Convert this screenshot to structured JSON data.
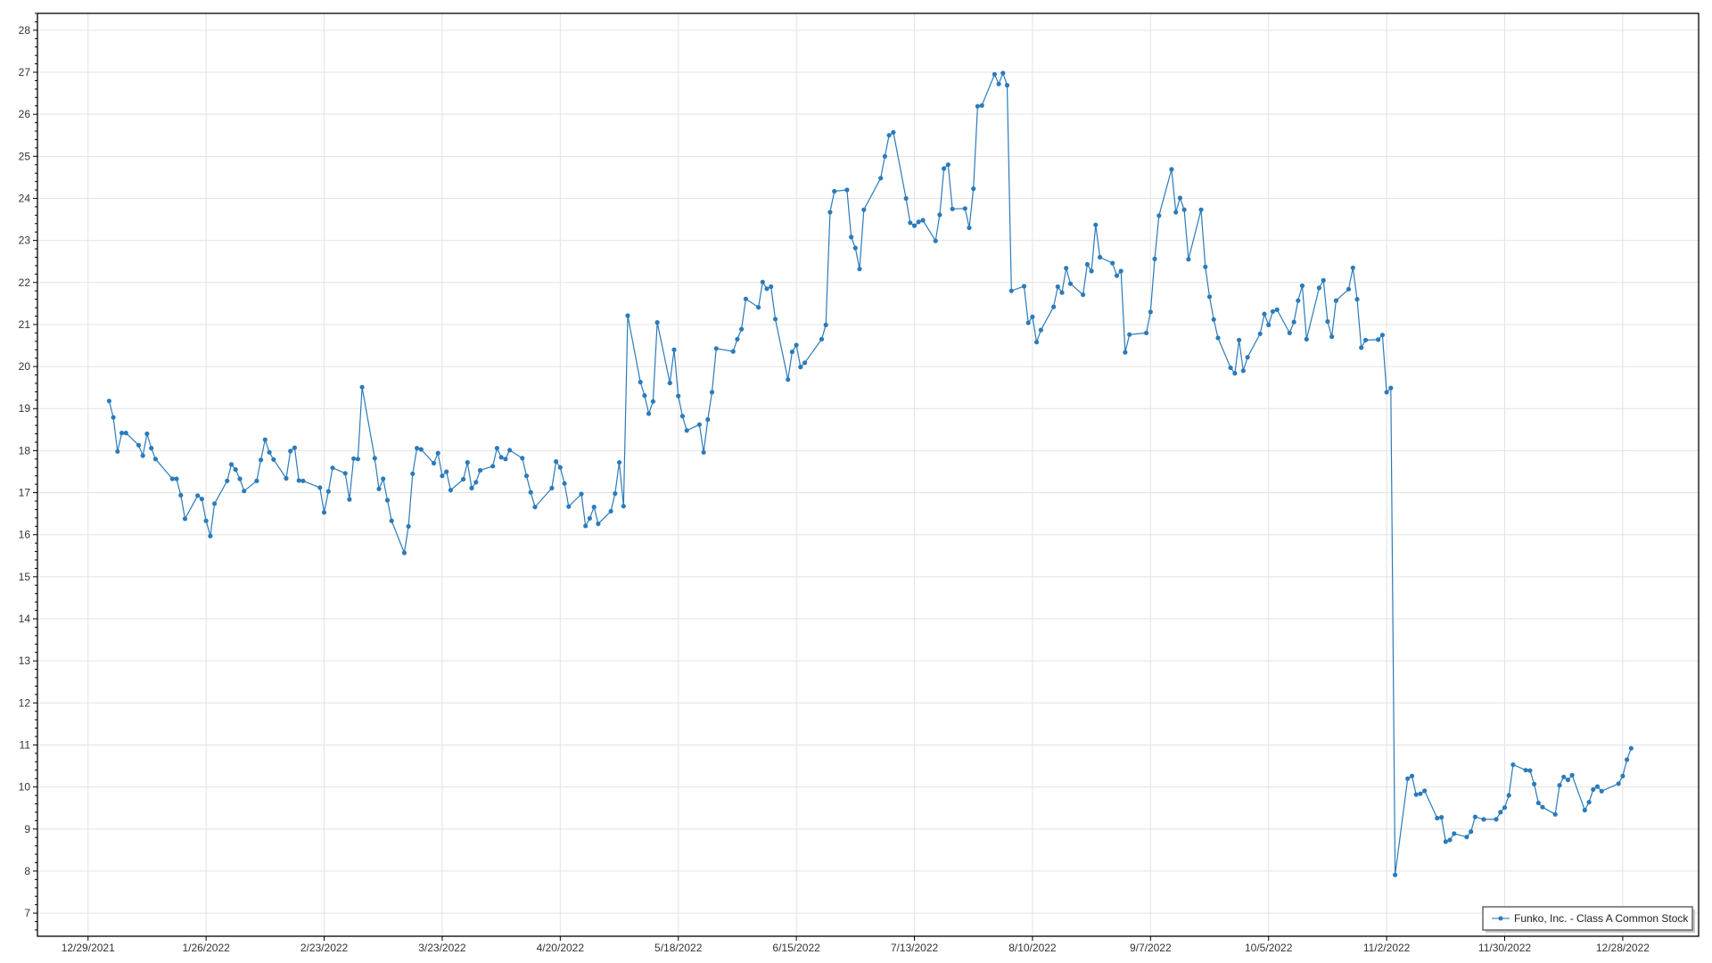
{
  "chart_data": {
    "type": "line",
    "title": "",
    "xlabel": "",
    "ylabel": "",
    "xlim": [
      "2021-12-17",
      "2023-01-15"
    ],
    "ylim": [
      6.45,
      28.4
    ],
    "grid": true,
    "legend_position": "bottom-right",
    "x_ticks": [
      "12/29/2021",
      "1/26/2022",
      "2/23/2022",
      "3/23/2022",
      "4/20/2022",
      "5/18/2022",
      "6/15/2022",
      "7/13/2022",
      "8/10/2022",
      "9/7/2022",
      "10/5/2022",
      "11/2/2022",
      "11/30/2022",
      "12/28/2022"
    ],
    "y_ticks": [
      7,
      8,
      9,
      10,
      11,
      12,
      13,
      14,
      15,
      16,
      17,
      18,
      19,
      20,
      21,
      22,
      23,
      24,
      25,
      26,
      27,
      28
    ],
    "colors": {
      "series": "#2b7bba",
      "grid": "#e3e3e3",
      "axis": "#000000",
      "legend_border": "#666666"
    },
    "series": [
      {
        "name": "Funko, Inc. - Class A Common Stock",
        "marker": "circle",
        "points": [
          [
            "2022-01-03",
            19.18
          ],
          [
            "2022-01-04",
            18.79
          ],
          [
            "2022-01-05",
            17.98
          ],
          [
            "2022-01-06",
            18.42
          ],
          [
            "2022-01-07",
            18.42
          ],
          [
            "2022-01-10",
            18.13
          ],
          [
            "2022-01-11",
            17.88
          ],
          [
            "2022-01-12",
            18.4
          ],
          [
            "2022-01-13",
            18.06
          ],
          [
            "2022-01-14",
            17.8
          ],
          [
            "2022-01-18",
            17.33
          ],
          [
            "2022-01-19",
            17.33
          ],
          [
            "2022-01-20",
            16.94
          ],
          [
            "2022-01-21",
            16.38
          ],
          [
            "2022-01-24",
            16.93
          ],
          [
            "2022-01-25",
            16.85
          ],
          [
            "2022-01-26",
            16.33
          ],
          [
            "2022-01-27",
            15.97
          ],
          [
            "2022-01-28",
            16.74
          ],
          [
            "2022-01-31",
            17.28
          ],
          [
            "2022-02-01",
            17.67
          ],
          [
            "2022-02-02",
            17.55
          ],
          [
            "2022-02-03",
            17.33
          ],
          [
            "2022-02-04",
            17.04
          ],
          [
            "2022-02-07",
            17.28
          ],
          [
            "2022-02-08",
            17.78
          ],
          [
            "2022-02-09",
            18.26
          ],
          [
            "2022-02-10",
            17.96
          ],
          [
            "2022-02-11",
            17.79
          ],
          [
            "2022-02-14",
            17.34
          ],
          [
            "2022-02-15",
            17.99
          ],
          [
            "2022-02-16",
            18.07
          ],
          [
            "2022-02-17",
            17.29
          ],
          [
            "2022-02-18",
            17.28
          ],
          [
            "2022-02-22",
            17.12
          ],
          [
            "2022-02-23",
            16.53
          ],
          [
            "2022-02-24",
            17.03
          ],
          [
            "2022-02-25",
            17.59
          ],
          [
            "2022-02-28",
            17.46
          ],
          [
            "2022-03-01",
            16.84
          ],
          [
            "2022-03-02",
            17.81
          ],
          [
            "2022-03-03",
            17.8
          ],
          [
            "2022-03-04",
            19.51
          ],
          [
            "2022-03-07",
            17.82
          ],
          [
            "2022-03-08",
            17.09
          ],
          [
            "2022-03-09",
            17.33
          ],
          [
            "2022-03-10",
            16.82
          ],
          [
            "2022-03-11",
            16.33
          ],
          [
            "2022-03-14",
            15.57
          ],
          [
            "2022-03-15",
            16.2
          ],
          [
            "2022-03-16",
            17.45
          ],
          [
            "2022-03-17",
            18.06
          ],
          [
            "2022-03-18",
            18.03
          ],
          [
            "2022-03-21",
            17.7
          ],
          [
            "2022-03-22",
            17.94
          ],
          [
            "2022-03-23",
            17.4
          ],
          [
            "2022-03-24",
            17.5
          ],
          [
            "2022-03-25",
            17.06
          ],
          [
            "2022-03-28",
            17.32
          ],
          [
            "2022-03-29",
            17.72
          ],
          [
            "2022-03-30",
            17.11
          ],
          [
            "2022-03-31",
            17.25
          ],
          [
            "2022-04-01",
            17.53
          ],
          [
            "2022-04-04",
            17.63
          ],
          [
            "2022-04-05",
            18.06
          ],
          [
            "2022-04-06",
            17.84
          ],
          [
            "2022-04-07",
            17.8
          ],
          [
            "2022-04-08",
            18.01
          ],
          [
            "2022-04-11",
            17.82
          ],
          [
            "2022-04-12",
            17.4
          ],
          [
            "2022-04-13",
            17.01
          ],
          [
            "2022-04-14",
            16.66
          ],
          [
            "2022-04-18",
            17.11
          ],
          [
            "2022-04-19",
            17.74
          ],
          [
            "2022-04-20",
            17.6
          ],
          [
            "2022-04-21",
            17.22
          ],
          [
            "2022-04-22",
            16.67
          ],
          [
            "2022-04-25",
            16.97
          ],
          [
            "2022-04-26",
            16.21
          ],
          [
            "2022-04-27",
            16.39
          ],
          [
            "2022-04-28",
            16.66
          ],
          [
            "2022-04-29",
            16.26
          ],
          [
            "2022-05-02",
            16.56
          ],
          [
            "2022-05-03",
            16.98
          ],
          [
            "2022-05-04",
            17.72
          ],
          [
            "2022-05-05",
            16.68
          ],
          [
            "2022-05-06",
            21.21
          ],
          [
            "2022-05-09",
            19.63
          ],
          [
            "2022-05-10",
            19.31
          ],
          [
            "2022-05-11",
            18.88
          ],
          [
            "2022-05-12",
            19.17
          ],
          [
            "2022-05-13",
            21.05
          ],
          [
            "2022-05-16",
            19.61
          ],
          [
            "2022-05-17",
            20.4
          ],
          [
            "2022-05-18",
            19.3
          ],
          [
            "2022-05-19",
            18.82
          ],
          [
            "2022-05-20",
            18.48
          ],
          [
            "2022-05-23",
            18.62
          ],
          [
            "2022-05-24",
            17.96
          ],
          [
            "2022-05-25",
            18.74
          ],
          [
            "2022-05-26",
            19.39
          ],
          [
            "2022-05-27",
            20.43
          ],
          [
            "2022-05-31",
            20.36
          ],
          [
            "2022-06-01",
            20.65
          ],
          [
            "2022-06-02",
            20.89
          ],
          [
            "2022-06-03",
            21.61
          ],
          [
            "2022-06-06",
            21.41
          ],
          [
            "2022-06-07",
            22.01
          ],
          [
            "2022-06-08",
            21.85
          ],
          [
            "2022-06-09",
            21.9
          ],
          [
            "2022-06-10",
            21.13
          ],
          [
            "2022-06-13",
            19.69
          ],
          [
            "2022-06-14",
            20.35
          ],
          [
            "2022-06-15",
            20.51
          ],
          [
            "2022-06-16",
            19.99
          ],
          [
            "2022-06-17",
            20.09
          ],
          [
            "2022-06-21",
            20.65
          ],
          [
            "2022-06-22",
            20.99
          ],
          [
            "2022-06-23",
            23.67
          ],
          [
            "2022-06-24",
            24.17
          ],
          [
            "2022-06-27",
            24.2
          ],
          [
            "2022-06-28",
            23.08
          ],
          [
            "2022-06-29",
            22.82
          ],
          [
            "2022-06-30",
            22.32
          ],
          [
            "2022-07-01",
            23.73
          ],
          [
            "2022-07-05",
            24.48
          ],
          [
            "2022-07-06",
            25.0
          ],
          [
            "2022-07-07",
            25.5
          ],
          [
            "2022-07-08",
            25.57
          ],
          [
            "2022-07-11",
            24.0
          ],
          [
            "2022-07-12",
            23.42
          ],
          [
            "2022-07-13",
            23.35
          ],
          [
            "2022-07-14",
            23.44
          ],
          [
            "2022-07-15",
            23.48
          ],
          [
            "2022-07-18",
            22.99
          ],
          [
            "2022-07-19",
            23.61
          ],
          [
            "2022-07-20",
            24.71
          ],
          [
            "2022-07-21",
            24.8
          ],
          [
            "2022-07-22",
            23.75
          ],
          [
            "2022-07-25",
            23.76
          ],
          [
            "2022-07-26",
            23.3
          ],
          [
            "2022-07-27",
            24.23
          ],
          [
            "2022-07-28",
            26.19
          ],
          [
            "2022-07-29",
            26.21
          ],
          [
            "2022-08-01",
            26.95
          ],
          [
            "2022-08-02",
            26.72
          ],
          [
            "2022-08-03",
            26.98
          ],
          [
            "2022-08-04",
            26.69
          ],
          [
            "2022-08-05",
            21.8
          ],
          [
            "2022-08-08",
            21.91
          ],
          [
            "2022-08-09",
            21.04
          ],
          [
            "2022-08-10",
            21.18
          ],
          [
            "2022-08-11",
            20.58
          ],
          [
            "2022-08-12",
            20.87
          ],
          [
            "2022-08-15",
            21.42
          ],
          [
            "2022-08-16",
            21.9
          ],
          [
            "2022-08-17",
            21.76
          ],
          [
            "2022-08-18",
            22.34
          ],
          [
            "2022-08-19",
            21.97
          ],
          [
            "2022-08-22",
            21.71
          ],
          [
            "2022-08-23",
            22.43
          ],
          [
            "2022-08-24",
            22.27
          ],
          [
            "2022-08-25",
            23.37
          ],
          [
            "2022-08-26",
            22.6
          ],
          [
            "2022-08-29",
            22.46
          ],
          [
            "2022-08-30",
            22.16
          ],
          [
            "2022-08-31",
            22.27
          ],
          [
            "2022-09-01",
            20.34
          ],
          [
            "2022-09-02",
            20.76
          ],
          [
            "2022-09-06",
            20.8
          ],
          [
            "2022-09-07",
            21.3
          ],
          [
            "2022-09-08",
            22.56
          ],
          [
            "2022-09-09",
            23.59
          ],
          [
            "2022-09-12",
            24.69
          ],
          [
            "2022-09-13",
            23.67
          ],
          [
            "2022-09-14",
            24.01
          ],
          [
            "2022-09-15",
            23.73
          ],
          [
            "2022-09-16",
            22.55
          ],
          [
            "2022-09-19",
            23.73
          ],
          [
            "2022-09-20",
            22.37
          ],
          [
            "2022-09-21",
            21.66
          ],
          [
            "2022-09-22",
            21.12
          ],
          [
            "2022-09-23",
            20.68
          ],
          [
            "2022-09-26",
            19.97
          ],
          [
            "2022-09-27",
            19.84
          ],
          [
            "2022-09-28",
            20.63
          ],
          [
            "2022-09-29",
            19.9
          ],
          [
            "2022-09-30",
            20.22
          ],
          [
            "2022-10-03",
            20.78
          ],
          [
            "2022-10-04",
            21.25
          ],
          [
            "2022-10-05",
            20.99
          ],
          [
            "2022-10-06",
            21.31
          ],
          [
            "2022-10-07",
            21.35
          ],
          [
            "2022-10-10",
            20.8
          ],
          [
            "2022-10-11",
            21.06
          ],
          [
            "2022-10-12",
            21.57
          ],
          [
            "2022-10-13",
            21.92
          ],
          [
            "2022-10-14",
            20.65
          ],
          [
            "2022-10-17",
            21.87
          ],
          [
            "2022-10-18",
            22.05
          ],
          [
            "2022-10-19",
            21.07
          ],
          [
            "2022-10-20",
            20.71
          ],
          [
            "2022-10-21",
            21.57
          ],
          [
            "2022-10-24",
            21.84
          ],
          [
            "2022-10-25",
            22.35
          ],
          [
            "2022-10-26",
            21.6
          ],
          [
            "2022-10-27",
            20.45
          ],
          [
            "2022-10-28",
            20.63
          ],
          [
            "2022-10-31",
            20.64
          ],
          [
            "2022-11-01",
            20.75
          ],
          [
            "2022-11-02",
            19.39
          ],
          [
            "2022-11-03",
            19.49
          ],
          [
            "2022-11-04",
            7.91
          ],
          [
            "2022-11-07",
            10.2
          ],
          [
            "2022-11-08",
            10.26
          ],
          [
            "2022-11-09",
            9.82
          ],
          [
            "2022-11-10",
            9.84
          ],
          [
            "2022-11-11",
            9.91
          ],
          [
            "2022-11-14",
            9.26
          ],
          [
            "2022-11-15",
            9.28
          ],
          [
            "2022-11-16",
            8.7
          ],
          [
            "2022-11-17",
            8.74
          ],
          [
            "2022-11-18",
            8.89
          ],
          [
            "2022-11-21",
            8.81
          ],
          [
            "2022-11-22",
            8.94
          ],
          [
            "2022-11-23",
            9.29
          ],
          [
            "2022-11-25",
            9.23
          ],
          [
            "2022-11-28",
            9.23
          ],
          [
            "2022-11-29",
            9.4
          ],
          [
            "2022-11-30",
            9.51
          ],
          [
            "2022-12-01",
            9.8
          ],
          [
            "2022-12-02",
            10.53
          ],
          [
            "2022-12-05",
            10.4
          ],
          [
            "2022-12-06",
            10.39
          ],
          [
            "2022-12-07",
            10.07
          ],
          [
            "2022-12-08",
            9.62
          ],
          [
            "2022-12-09",
            9.52
          ],
          [
            "2022-12-12",
            9.35
          ],
          [
            "2022-12-13",
            10.04
          ],
          [
            "2022-12-14",
            10.24
          ],
          [
            "2022-12-15",
            10.17
          ],
          [
            "2022-12-16",
            10.28
          ],
          [
            "2022-12-19",
            9.45
          ],
          [
            "2022-12-20",
            9.64
          ],
          [
            "2022-12-21",
            9.94
          ],
          [
            "2022-12-22",
            10.01
          ],
          [
            "2022-12-23",
            9.9
          ],
          [
            "2022-12-27",
            10.08
          ],
          [
            "2022-12-28",
            10.26
          ],
          [
            "2022-12-29",
            10.65
          ],
          [
            "2022-12-30",
            10.92
          ]
        ]
      }
    ]
  }
}
